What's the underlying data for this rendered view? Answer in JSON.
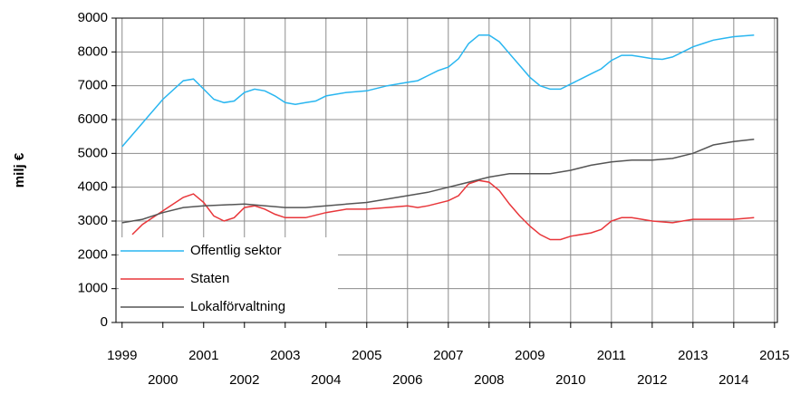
{
  "chart_data": {
    "type": "line",
    "y_label": "milj €",
    "xlim": [
      1998.85,
      2015.07
    ],
    "xticks": [
      1999,
      2000,
      2001,
      2002,
      2003,
      2004,
      2005,
      2006,
      2007,
      2008,
      2009,
      2010,
      2011,
      2012,
      2013,
      2014,
      2015
    ],
    "ylim": [
      0,
      9000
    ],
    "yticks": [
      0,
      1000,
      2000,
      3000,
      4000,
      5000,
      6000,
      7000,
      8000,
      9000
    ],
    "grid": true,
    "legend": "lower left",
    "series": [
      {
        "name": "Offentlig sektor",
        "color": "#29b6f0",
        "x": [
          1999,
          1999.5,
          2000,
          2000.5,
          2000.75,
          2001,
          2001.25,
          2001.5,
          2001.75,
          2002,
          2002.25,
          2002.5,
          2002.75,
          2003,
          2003.25,
          2003.5,
          2003.75,
          2004,
          2004.5,
          2005,
          2005.5,
          2006,
          2006.25,
          2006.5,
          2006.75,
          2007,
          2007.25,
          2007.5,
          2007.75,
          2008,
          2008.25,
          2008.5,
          2008.75,
          2009,
          2009.25,
          2009.5,
          2009.75,
          2010,
          2010.25,
          2010.5,
          2010.75,
          2011,
          2011.25,
          2011.5,
          2011.75,
          2012,
          2012.25,
          2012.5,
          2012.75,
          2013,
          2013.25,
          2013.5,
          2013.75,
          2014,
          2014.5
        ],
        "values": [
          5200,
          5900,
          6600,
          7150,
          7200,
          6900,
          6600,
          6500,
          6550,
          6800,
          6900,
          6850,
          6700,
          6500,
          6450,
          6500,
          6550,
          6700,
          6800,
          6850,
          7000,
          7100,
          7150,
          7300,
          7450,
          7550,
          7800,
          8250,
          8500,
          8500,
          8300,
          7950,
          7600,
          7250,
          7000,
          6900,
          6900,
          7050,
          7200,
          7350,
          7500,
          7750,
          7900,
          7900,
          7850,
          7800,
          7780,
          7850,
          8000,
          8150,
          8250,
          8350,
          8400,
          8450,
          8500
        ]
      },
      {
        "name": "Staten",
        "color": "#e8363a",
        "x": [
          1999.25,
          1999.5,
          2000,
          2000.5,
          2000.75,
          2001,
          2001.25,
          2001.5,
          2001.75,
          2002,
          2002.25,
          2002.5,
          2002.75,
          2003,
          2003.5,
          2004,
          2004.5,
          2005,
          2005.5,
          2006,
          2006.25,
          2006.5,
          2007,
          2007.25,
          2007.5,
          2007.75,
          2008,
          2008.25,
          2008.5,
          2008.75,
          2009,
          2009.25,
          2009.5,
          2009.75,
          2010,
          2010.5,
          2010.75,
          2011,
          2011.25,
          2011.5,
          2011.75,
          2012,
          2012.5,
          2013,
          2013.5,
          2014,
          2014.5
        ],
        "values": [
          2600,
          2900,
          3300,
          3700,
          3800,
          3550,
          3150,
          3000,
          3100,
          3400,
          3450,
          3350,
          3200,
          3100,
          3100,
          3250,
          3350,
          3350,
          3400,
          3450,
          3400,
          3450,
          3600,
          3750,
          4100,
          4200,
          4150,
          3900,
          3500,
          3150,
          2850,
          2600,
          2450,
          2450,
          2550,
          2650,
          2750,
          3000,
          3100,
          3100,
          3050,
          3000,
          2950,
          3050,
          3050,
          3050,
          3100
        ]
      },
      {
        "name": "Lokalförvaltning",
        "color": "#555555",
        "x": [
          1999,
          1999.5,
          2000,
          2000.5,
          2001,
          2002,
          2003,
          2003.5,
          2004,
          2004.5,
          2005,
          2005.5,
          2006,
          2006.5,
          2007,
          2007.5,
          2008,
          2008.5,
          2009,
          2009.5,
          2010,
          2010.5,
          2011,
          2011.5,
          2012,
          2012.5,
          2013,
          2013.5,
          2014,
          2014.5
        ],
        "values": [
          2950,
          3050,
          3250,
          3400,
          3450,
          3500,
          3400,
          3400,
          3450,
          3500,
          3550,
          3650,
          3750,
          3850,
          4000,
          4150,
          4300,
          4400,
          4400,
          4400,
          4500,
          4650,
          4750,
          4800,
          4800,
          4850,
          5000,
          5250,
          5350,
          5420
        ]
      }
    ]
  }
}
